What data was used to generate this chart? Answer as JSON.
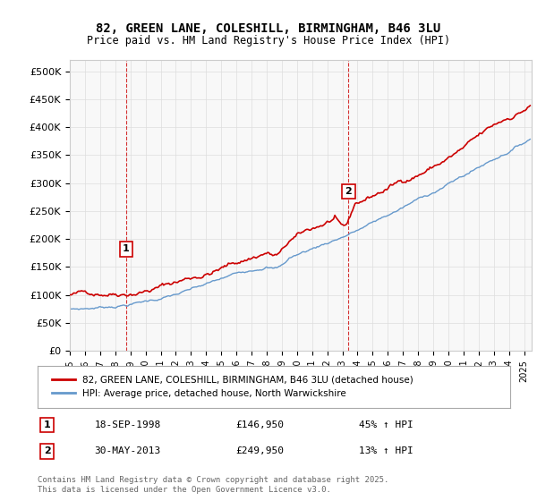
{
  "title1": "82, GREEN LANE, COLESHILL, BIRMINGHAM, B46 3LU",
  "title2": "Price paid vs. HM Land Registry's House Price Index (HPI)",
  "ylabel": "",
  "xlim_start": 1995.0,
  "xlim_end": 2025.5,
  "ylim": [
    0,
    520000
  ],
  "yticks": [
    0,
    50000,
    100000,
    150000,
    200000,
    250000,
    300000,
    350000,
    400000,
    450000,
    500000
  ],
  "ytick_labels": [
    "£0",
    "£50K",
    "£100K",
    "£150K",
    "£200K",
    "£250K",
    "£300K",
    "£350K",
    "£400K",
    "£450K",
    "£500K"
  ],
  "xticks": [
    1995,
    1996,
    1997,
    1998,
    1999,
    2000,
    2001,
    2002,
    2003,
    2004,
    2005,
    2006,
    2007,
    2008,
    2009,
    2010,
    2011,
    2012,
    2013,
    2014,
    2015,
    2016,
    2017,
    2018,
    2019,
    2020,
    2021,
    2022,
    2023,
    2024,
    2025
  ],
  "sale1_x": 1998.72,
  "sale1_y": 146950,
  "sale1_label": "1",
  "sale2_x": 2013.41,
  "sale2_y": 249950,
  "sale2_label": "2",
  "red_color": "#cc0000",
  "blue_color": "#6699cc",
  "vline_color": "#cc0000",
  "legend_label1": "82, GREEN LANE, COLESHILL, BIRMINGHAM, B46 3LU (detached house)",
  "legend_label2": "HPI: Average price, detached house, North Warwickshire",
  "table_row1": [
    "1",
    "18-SEP-1998",
    "£146,950",
    "45% ↑ HPI"
  ],
  "table_row2": [
    "2",
    "30-MAY-2013",
    "£249,950",
    "13% ↑ HPI"
  ],
  "footnote": "Contains HM Land Registry data © Crown copyright and database right 2025.\nThis data is licensed under the Open Government Licence v3.0.",
  "background_color": "#f8f8f8"
}
